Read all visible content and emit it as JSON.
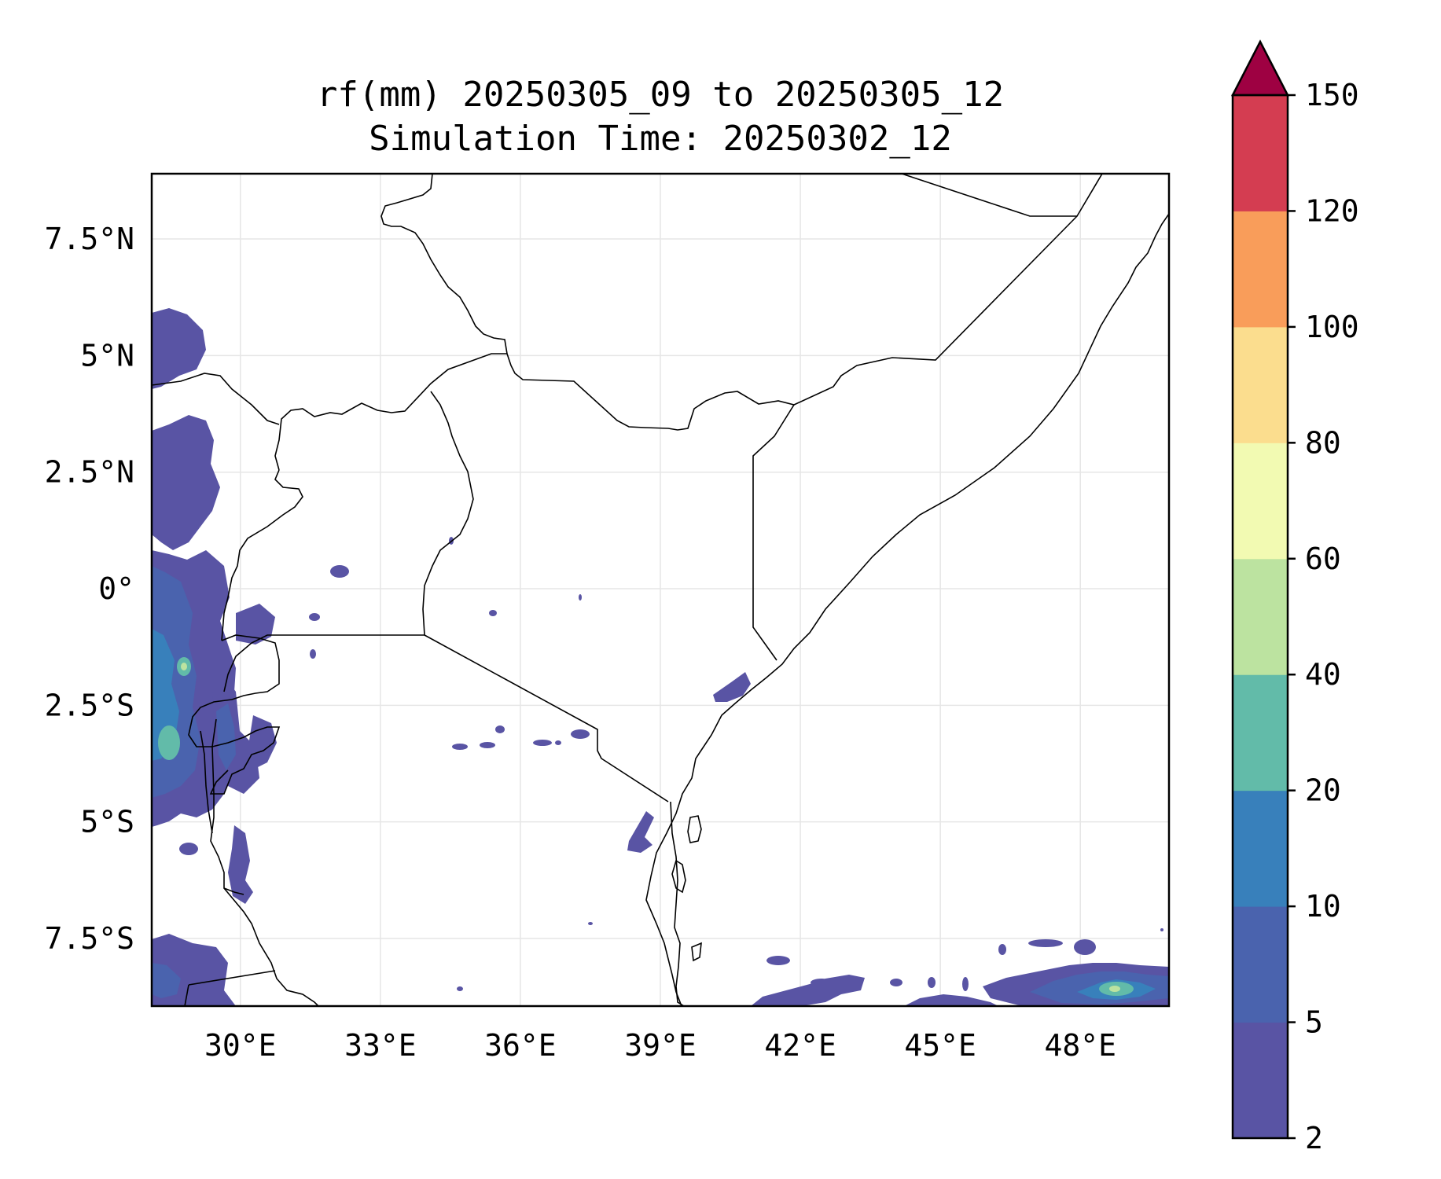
{
  "title": {
    "line1": "rf(mm) 20250305_09 to 20250305_12",
    "line2": "Simulation Time: 20250302_12"
  },
  "map": {
    "region": "East Africa",
    "lon_range": [
      28.1,
      49.9
    ],
    "lat_range": [
      -8.95,
      8.9
    ],
    "x_ticks": [
      {
        "value": 30,
        "label": "30°E"
      },
      {
        "value": 33,
        "label": "33°E"
      },
      {
        "value": 36,
        "label": "36°E"
      },
      {
        "value": 39,
        "label": "39°E"
      },
      {
        "value": 42,
        "label": "42°E"
      },
      {
        "value": 45,
        "label": "45°E"
      },
      {
        "value": 48,
        "label": "48°E"
      }
    ],
    "y_ticks": [
      {
        "value": 7.5,
        "label": "7.5°N"
      },
      {
        "value": 5,
        "label": "5°N"
      },
      {
        "value": 2.5,
        "label": "2.5°N"
      },
      {
        "value": 0,
        "label": "0°"
      },
      {
        "value": -2.5,
        "label": "2.5°S"
      },
      {
        "value": -5,
        "label": "5°S"
      },
      {
        "value": -7.5,
        "label": "7.5°S"
      }
    ],
    "gridlines": true
  },
  "colorbar": {
    "boundaries": [
      2,
      5,
      10,
      20,
      40,
      60,
      80,
      100,
      120,
      150
    ],
    "labels": [
      "2",
      "5",
      "10",
      "20",
      "40",
      "60",
      "80",
      "100",
      "120",
      "150"
    ],
    "colors": [
      "#5954a4",
      "#4a63ae",
      "#3880bb",
      "#62bba9",
      "#bce3a0",
      "#f2fab2",
      "#fbdd8e",
      "#f99d5a",
      "#d43d51"
    ],
    "extend_color": "#9e0142"
  }
}
